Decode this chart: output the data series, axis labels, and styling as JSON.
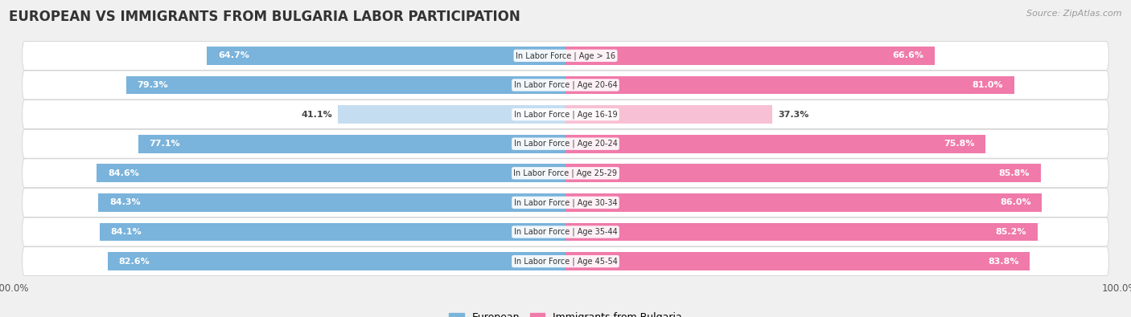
{
  "title": "EUROPEAN VS IMMIGRANTS FROM BULGARIA LABOR PARTICIPATION",
  "source": "Source: ZipAtlas.com",
  "categories": [
    "In Labor Force | Age > 16",
    "In Labor Force | Age 20-64",
    "In Labor Force | Age 16-19",
    "In Labor Force | Age 20-24",
    "In Labor Force | Age 25-29",
    "In Labor Force | Age 30-34",
    "In Labor Force | Age 35-44",
    "In Labor Force | Age 45-54"
  ],
  "european_values": [
    64.7,
    79.3,
    41.1,
    77.1,
    84.6,
    84.3,
    84.1,
    82.6
  ],
  "bulgaria_values": [
    66.6,
    81.0,
    37.3,
    75.8,
    85.8,
    86.0,
    85.2,
    83.8
  ],
  "european_color": "#7ab3db",
  "european_color_light": "#c5ddf0",
  "bulgaria_color": "#f07aaa",
  "bulgaria_color_light": "#f8c0d4",
  "background_color": "#f0f0f0",
  "row_bg_even": "#e8e8ec",
  "row_bg_odd": "#f2f2f5",
  "max_value": 100.0,
  "legend_european": "European",
  "legend_bulgaria": "Immigrants from Bulgaria",
  "label_fontsize": 8,
  "cat_fontsize": 7,
  "title_fontsize": 12,
  "bar_height": 0.62,
  "light_threshold": 50
}
